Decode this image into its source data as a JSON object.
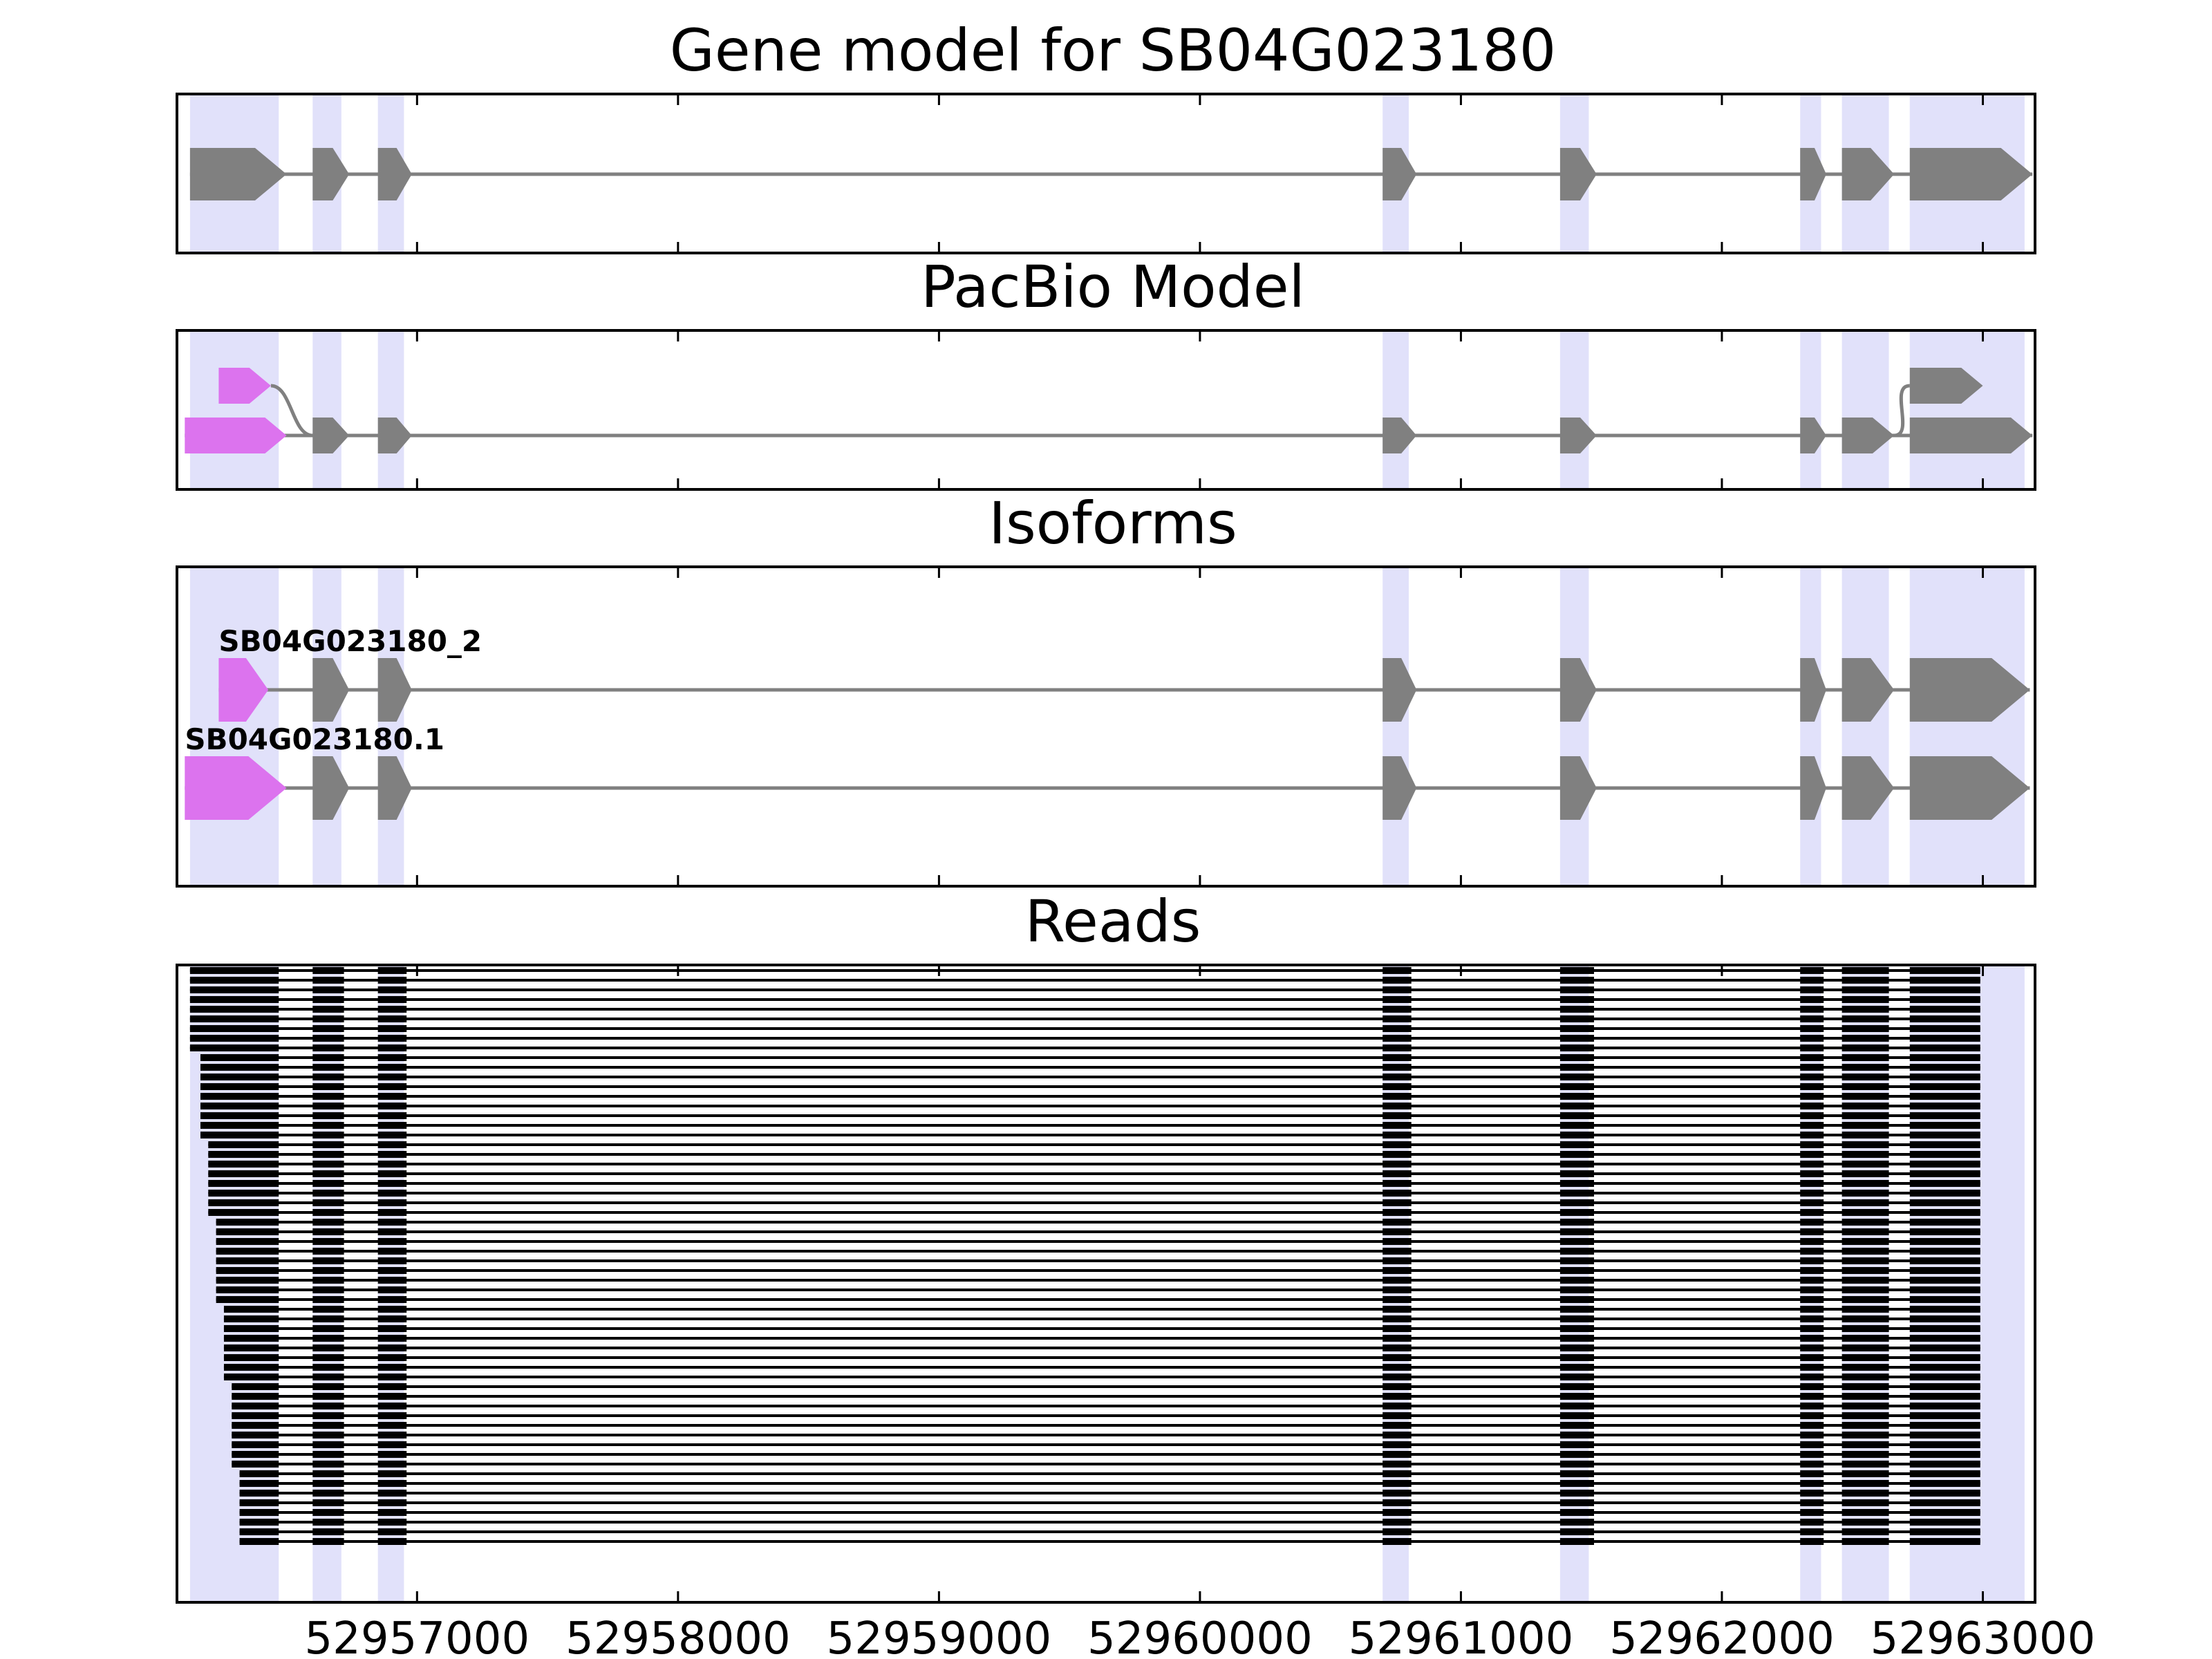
{
  "chart_data": {
    "type": "gene-model",
    "title": "Gene model for SB04G023180",
    "panels": [
      {
        "id": "gene",
        "title": "Gene model for SB04G023180"
      },
      {
        "id": "pacbio",
        "title": "PacBio Model"
      },
      {
        "id": "isoforms",
        "title": "Isoforms"
      },
      {
        "id": "reads",
        "title": "Reads"
      }
    ],
    "xlim": [
      52956080,
      52963200
    ],
    "xticks": [
      52957000,
      52958000,
      52959000,
      52960000,
      52961000,
      52962000,
      52963000
    ],
    "xtick_labels": [
      "52957000",
      "52958000",
      "52959000",
      "52960000",
      "52961000",
      "52962000",
      "52963000"
    ],
    "exon_regions": [
      [
        52956130,
        52956470
      ],
      [
        52956600,
        52956710
      ],
      [
        52956850,
        52956950
      ],
      [
        52960700,
        52960800
      ],
      [
        52961380,
        52961490
      ],
      [
        52962300,
        52962380
      ],
      [
        52962460,
        52962640
      ],
      [
        52962720,
        52963160
      ]
    ],
    "gene_model": {
      "exons": [
        [
          52956130,
          52956500
        ],
        [
          52956600,
          52956740
        ],
        [
          52956850,
          52956980
        ],
        [
          52960700,
          52960830
        ],
        [
          52961380,
          52961520
        ],
        [
          52962300,
          52962400
        ],
        [
          52962460,
          52962660
        ],
        [
          52962720,
          52963190
        ]
      ],
      "color": "#808080"
    },
    "pacbio_model": {
      "upper": {
        "exons": [
          [
            52956240,
            52956440
          ]
        ],
        "connect_to": 52956600,
        "color": "#dc73ee"
      },
      "lower": {
        "exons": [
          [
            52956110,
            52956500
          ],
          [
            52956600,
            52956740
          ],
          [
            52956850,
            52956980
          ],
          [
            52960700,
            52960830
          ],
          [
            52961380,
            52961520
          ],
          [
            52962300,
            52962400
          ],
          [
            52962460,
            52962660
          ],
          [
            52962720,
            52963190
          ]
        ],
        "first_exon_color": "#dc73ee",
        "color": "#808080"
      },
      "upper_last": {
        "exons": [
          [
            52962720,
            52963000
          ]
        ],
        "connect_from": 52962660,
        "color": "#808080"
      }
    },
    "isoforms": [
      {
        "name": "SB04G023180_2",
        "exons": [
          [
            52956240,
            52956430
          ],
          [
            52956600,
            52956740
          ],
          [
            52956850,
            52956980
          ],
          [
            52960700,
            52960830
          ],
          [
            52961380,
            52961520
          ],
          [
            52962300,
            52962400
          ],
          [
            52962460,
            52962660
          ],
          [
            52962720,
            52963180
          ]
        ]
      },
      {
        "name": "SB04G023180.1",
        "exons": [
          [
            52956110,
            52956500
          ],
          [
            52956600,
            52956740
          ],
          [
            52956850,
            52956980
          ],
          [
            52960700,
            52960830
          ],
          [
            52961380,
            52961520
          ],
          [
            52962300,
            52962400
          ],
          [
            52962460,
            52962660
          ],
          [
            52962720,
            52963180
          ]
        ]
      }
    ],
    "isoform_colors": {
      "first_exon": "#dc73ee",
      "other": "#808080"
    },
    "reads": {
      "count": 60,
      "color": "#000000",
      "exon_blocks": [
        [
          52956600,
          52956720
        ],
        [
          52956850,
          52956960
        ],
        [
          52960700,
          52960810
        ],
        [
          52961380,
          52961510
        ],
        [
          52962300,
          52962390
        ],
        [
          52962460,
          52962640
        ],
        [
          52962720,
          52962990
        ]
      ],
      "first_block_starts": [
        52956130,
        52956170,
        52956200,
        52956230,
        52956260,
        52956290,
        52956320
      ],
      "first_block_end": 52956470
    },
    "region_color": "#e1e1fa"
  }
}
